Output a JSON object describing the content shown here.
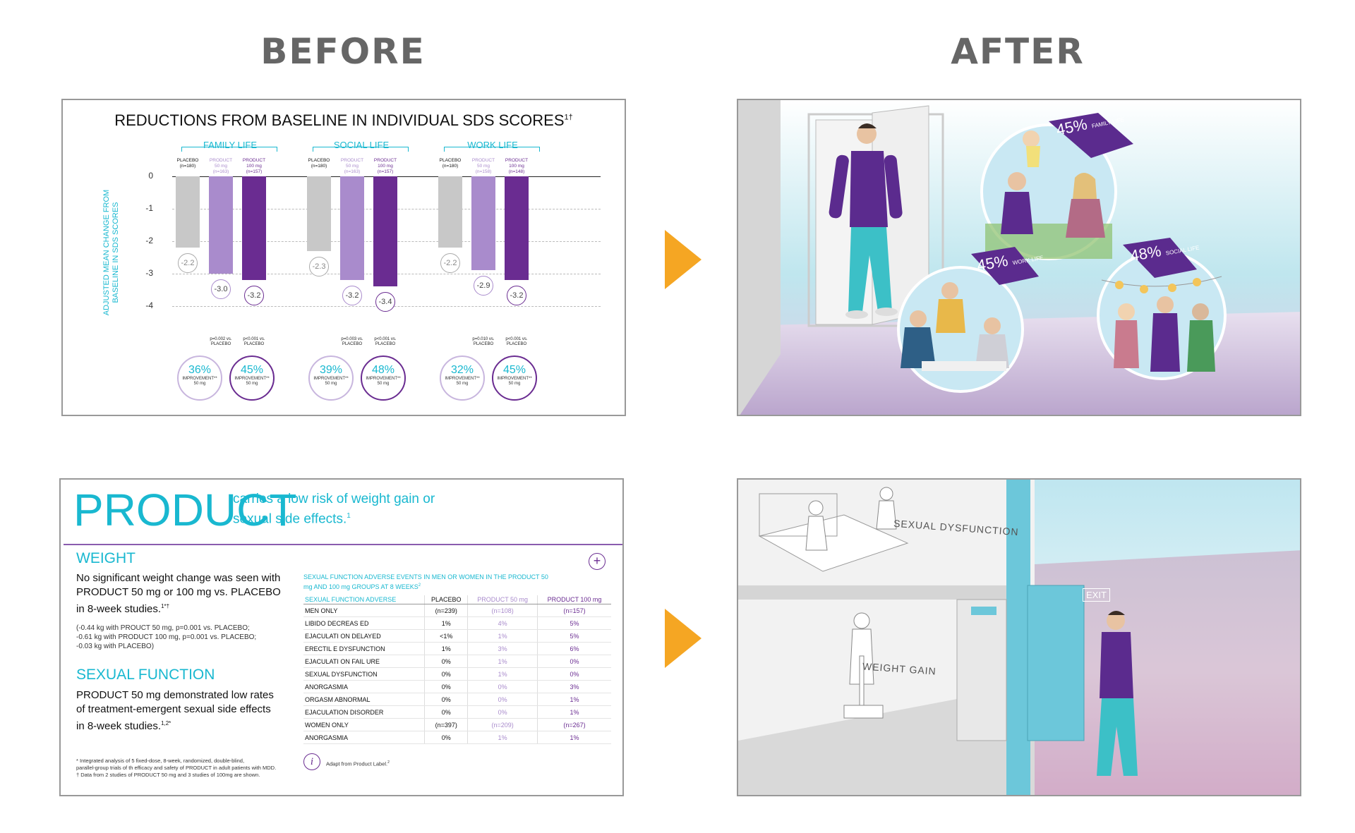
{
  "headings": {
    "before": "BEFORE",
    "after": "AFTER"
  },
  "chart_data": {
    "type": "bar",
    "title": "REDUCTIONS FROM BASELINE IN INDIVIDUAL SDS SCORES",
    "title_sup": "1†",
    "ylabel": "ADJUSTED MEAN CHANGE FROM BASELINE IN SDS SCORES",
    "ylim": [
      -4,
      0
    ],
    "yticks": [
      "0",
      "-1",
      "-2",
      "-3",
      "-4"
    ],
    "groups": [
      {
        "label": "FAMILY LIFE",
        "columns": [
          {
            "name": "PLACEBO",
            "n": "(n=180)",
            "value": -2.2,
            "label": "-2.2"
          },
          {
            "name": "PRODUCT",
            "n": "50 mg (n=163)",
            "value": -3.0,
            "label": "-3.0"
          },
          {
            "name": "PRODUCT",
            "n": "100 mg (n=157)",
            "value": -3.2,
            "label": "-3.2"
          }
        ],
        "pnotes": [
          "p=0.002 vs. PLACEBO",
          "p<0.001 vs. PLACEBO"
        ],
        "improvements": [
          {
            "pct": "36%",
            "label": "IMPROVEMENT**",
            "dose": "50 mg"
          },
          {
            "pct": "45%",
            "label": "IMPROVEMENT**",
            "dose": "50 mg"
          }
        ]
      },
      {
        "label": "SOCIAL LIFE",
        "columns": [
          {
            "name": "PLACEBO",
            "n": "(n=180)",
            "value": -2.3,
            "label": "-2.3"
          },
          {
            "name": "PRODUCT",
            "n": "50 mg (n=163)",
            "value": -3.2,
            "label": "-3.2"
          },
          {
            "name": "PRODUCT",
            "n": "100 mg (n=157)",
            "value": -3.4,
            "label": "-3.4"
          }
        ],
        "pnotes": [
          "p=0.003 vs. PLACEBO",
          "p<0.001 vs. PLACEBO"
        ],
        "improvements": [
          {
            "pct": "39%",
            "label": "IMPROVEMENT**",
            "dose": "50 mg"
          },
          {
            "pct": "48%",
            "label": "IMPROVEMENT**",
            "dose": "50 mg"
          }
        ]
      },
      {
        "label": "WORK LIFE",
        "columns": [
          {
            "name": "PLACEBO",
            "n": "(n=180)",
            "value": -2.2,
            "label": "-2.2"
          },
          {
            "name": "PRODUCT",
            "n": "50 mg (n=158)",
            "value": -2.9,
            "label": "-2.9"
          },
          {
            "name": "PRODUCT",
            "n": "100 mg (n=148)",
            "value": -3.2,
            "label": "-3.2"
          }
        ],
        "pnotes": [
          "p=0.010 vs. PLACEBO",
          "p<0.001 vs. PLACEBO"
        ],
        "improvements": [
          {
            "pct": "32%",
            "label": "IMPROVEMENT**",
            "dose": "50 mg"
          },
          {
            "pct": "45%",
            "label": "IMPROVEMENT**",
            "dose": "50 mg"
          }
        ]
      }
    ],
    "colors": {
      "placebo": "#c8c8c8",
      "mg50": "#a98bcc",
      "mg100": "#6a2c91"
    }
  },
  "product_panel": {
    "brand": "PRODUCT",
    "tagline": "carries a low risk of weight gain or sexual side effects.",
    "tagline_sup": "1",
    "weight_heading": "WEIGHT",
    "weight_body": "No significant weight change was seen with PRODUCT 50 mg or 100 mg vs. PLACEBO in 8-week studies.",
    "weight_body_sup": "1*†",
    "weight_detail_1": "(-0.44 kg with PROUCT 50 mg, p=0.001 vs. PLACEBO;",
    "weight_detail_2": "-0.61 kg with PRODUCT 100 mg, p=0.001 vs. PLACEBO;",
    "weight_detail_3": "-0.03 kg with PLACEBO)",
    "sexual_heading": "SEXUAL FUNCTION",
    "sexual_body": "PRODUCT 50 mg demonstrated low rates of treatment-emergent sexual side effects in 8-week studies.",
    "sexual_body_sup": "1,2*",
    "footnote_1": "* Integrated analysis of 5 fixed-dose, 8-week, randomized, double-blind,",
    "footnote_2": "parallel-group trials of th efficacy and safety of PRODUCT in adult patients with MDD.",
    "footnote_3": "† Data from 2 studies of PRODUCT 50 mg and 3 studies of 100mg are shown.",
    "plus_icon": "+",
    "info_icon": "i",
    "adapt_note": "Adapt from Product Label.",
    "adapt_note_sup": "2",
    "table_title": "SEXUAL FUNCTION ADVERSE EVENTS IN MEN OR WOMEN IN THE PRODUCT 50 mg AND 100 mg GROUPS AT 8 WEEKS",
    "table_title_sup": "2",
    "table_headers": [
      "SEXUAL FUNCTION ADVERSE",
      "PLACEBO",
      "PRODUCT 50 mg",
      "PRODUCT 100 mg"
    ],
    "table_rows": [
      [
        "MEN ONLY",
        "(n=239)",
        "(n=108)",
        "(n=157)"
      ],
      [
        "LIBIDO DECREAS ED",
        "1%",
        "4%",
        "5%"
      ],
      [
        "EJACULATI ON DELAYED",
        "<1%",
        "1%",
        "5%"
      ],
      [
        "ERECTIL E DYSFUNCTION",
        "1%",
        "3%",
        "6%"
      ],
      [
        "EJACULATI ON FAIL URE",
        "0%",
        "1%",
        "0%"
      ],
      [
        "SEXUAL DYSFUNCTION",
        "0%",
        "1%",
        "0%"
      ],
      [
        "ANORGASMIA",
        "0%",
        "0%",
        "3%"
      ],
      [
        "ORGASM ABNORMAL",
        "0%",
        "0%",
        "1%"
      ],
      [
        "EJACULATION DISORDER",
        "0%",
        "0%",
        "1%"
      ],
      [
        "WOMEN ONLY",
        "(n=397)",
        "(n=209)",
        "(n=267)"
      ],
      [
        "ANORGASMIA",
        "0%",
        "1%",
        "1%"
      ]
    ]
  },
  "illustration_top": {
    "badges": [
      {
        "pct": "45%",
        "label": "FAMILY LIFE"
      },
      {
        "pct": "45%",
        "label": "WORK LIFE"
      },
      {
        "pct": "48%",
        "label": "SOCIAL LIFE"
      }
    ]
  },
  "illustration_bottom": {
    "label_sexual": "SEXUAL DYSFUNCTION",
    "label_weight": "WEIGHT GAIN",
    "exit": "EXIT"
  }
}
